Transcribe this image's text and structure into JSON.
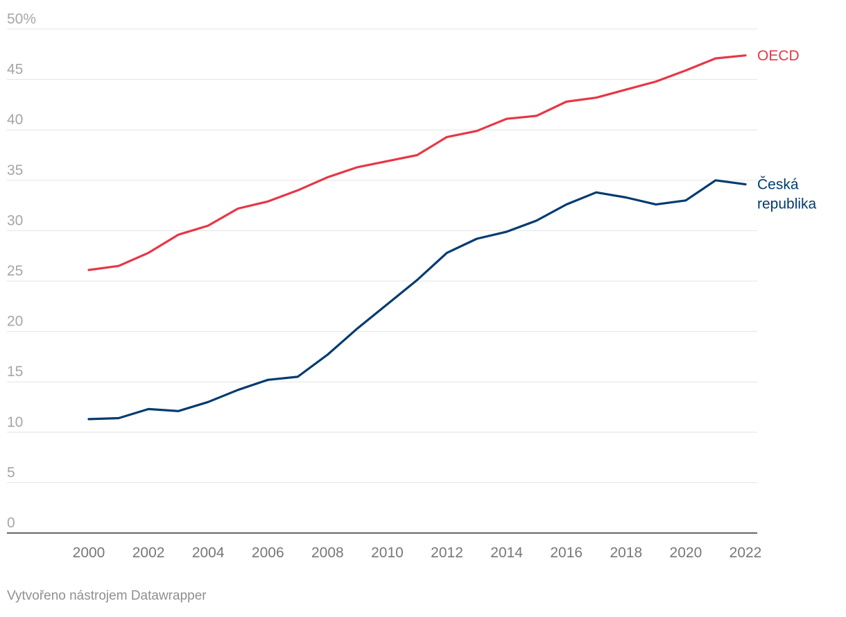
{
  "chart_data": {
    "type": "line",
    "title": "",
    "xlabel": "",
    "ylabel": "",
    "x": [
      2000,
      2001,
      2002,
      2003,
      2004,
      2005,
      2006,
      2007,
      2008,
      2009,
      2010,
      2011,
      2012,
      2013,
      2014,
      2015,
      2016,
      2017,
      2018,
      2019,
      2020,
      2021,
      2022
    ],
    "series": [
      {
        "name": "OECD",
        "color": "#e63746",
        "values": [
          26.1,
          26.5,
          27.8,
          29.6,
          30.5,
          32.2,
          32.9,
          34.0,
          35.3,
          36.3,
          36.9,
          37.5,
          39.3,
          39.9,
          41.1,
          41.4,
          42.8,
          43.2,
          44.0,
          44.8,
          45.9,
          47.1,
          47.4
        ]
      },
      {
        "name": "Česká republika",
        "label_lines": [
          "Česká",
          "republika"
        ],
        "color": "#003b6f",
        "values": [
          11.3,
          11.4,
          12.3,
          12.1,
          13.0,
          14.2,
          15.2,
          15.5,
          17.7,
          20.3,
          22.7,
          25.1,
          27.8,
          29.2,
          29.9,
          31.0,
          32.6,
          33.8,
          33.3,
          32.6,
          33.0,
          35.0,
          34.6
        ]
      }
    ],
    "ylim": [
      0,
      50
    ],
    "yticks": [
      0,
      5,
      10,
      15,
      20,
      25,
      30,
      35,
      40,
      45,
      50
    ],
    "ytick_labels": [
      "0",
      "5",
      "10",
      "15",
      "20",
      "25",
      "30",
      "35",
      "40",
      "45",
      "50%"
    ],
    "xticks": [
      2000,
      2002,
      2004,
      2006,
      2008,
      2010,
      2012,
      2014,
      2016,
      2018,
      2020,
      2022
    ],
    "xtick_labels": [
      "2000",
      "2002",
      "2004",
      "2006",
      "2008",
      "2010",
      "2012",
      "2014",
      "2016",
      "2018",
      "2020",
      "2022"
    ],
    "grid": true,
    "legend": "direct labels at line ends (right)"
  },
  "footer": {
    "credit": "Vytvořeno nástrojem Datawrapper"
  },
  "colors": {
    "grid": "#e3e3e3",
    "axis": "#333333",
    "tick_text": "#a6a6a6",
    "xtick_text": "#777777"
  }
}
